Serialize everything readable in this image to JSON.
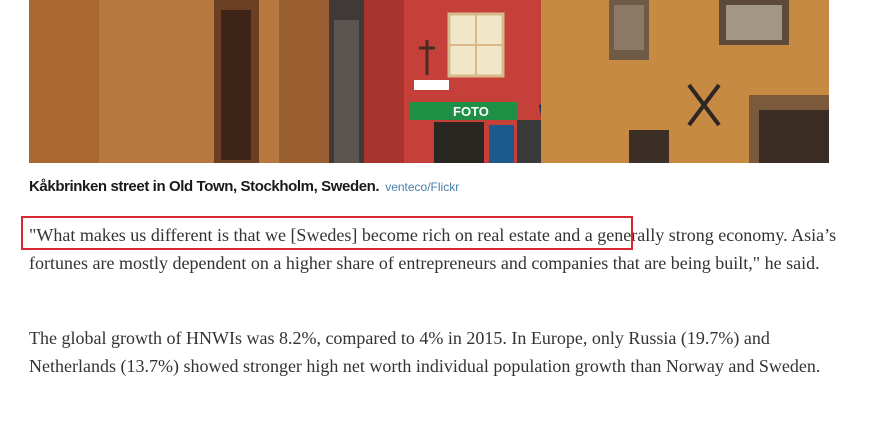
{
  "photo": {
    "sign_text": "FOTO",
    "colors": {
      "wall_left": "#b7783f",
      "wall_right": "#c78a43",
      "red_facade": "#c6403a",
      "sign_green": "#1f8f45",
      "sky": "#cfd8e3"
    }
  },
  "caption": {
    "text": "Kåkbrinken street in Old Town, Stockholm, Sweden.",
    "credit": "venteco/Flickr"
  },
  "article": {
    "paragraphs": [
      "\"What makes us different is that we [Swedes] become rich on real estate and a generally strong economy. Asia’s fortunes are mostly dependent on a higher share of entrepreneurs and companies that are being built,\" he said.",
      "The global growth of HNWIs was 8.2%, compared to 4% in 2015. In Europe, only Russia (19.7%) and Netherlands (13.7%) showed stronger high net worth individual population growth than Norway and Sweden."
    ]
  },
  "highlight": {
    "color": "#d7282f"
  }
}
